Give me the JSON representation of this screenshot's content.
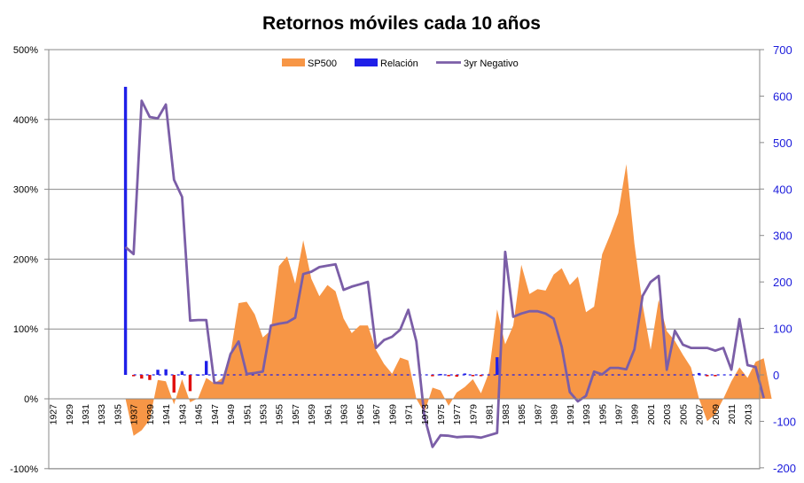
{
  "chart_data": {
    "type": "area",
    "title": "Retornos móviles cada 10 años",
    "colors": {
      "sp500": "#f79646",
      "relacion_pos": "#1f1fe8",
      "relacion_neg": "#e01010",
      "negativo": "#7b5ea7",
      "right_axis_text": "#1a1adb"
    },
    "left_axis": {
      "min": -1.0,
      "max": 5.0,
      "ticks": [
        "-100%",
        "0%",
        "100%",
        "200%",
        "300%",
        "400%",
        "500%"
      ]
    },
    "right_axis": {
      "min": -200,
      "max": 700,
      "ticks": [
        "-200",
        "-100",
        "0",
        "100",
        "200",
        "300",
        "400",
        "500",
        "600",
        "700"
      ]
    },
    "x_tick_labels": [
      "1927",
      "1929",
      "1931",
      "1933",
      "1935",
      "1937",
      "1939",
      "1941",
      "1943",
      "1945",
      "1947",
      "1949",
      "1951",
      "1953",
      "1955",
      "1957",
      "1959",
      "1961",
      "1963",
      "1965",
      "1967",
      "1969",
      "1971",
      "1973",
      "1975",
      "1977",
      "1979",
      "1981",
      "1983",
      "1985",
      "1987",
      "1989",
      "1991",
      "1993",
      "1995",
      "1997",
      "1999",
      "2001",
      "2003",
      "2005",
      "2007",
      "2009",
      "2011",
      "2013"
    ],
    "grid": true,
    "legend_position": "top-center",
    "series": [
      {
        "name": "SP500",
        "axis": "left",
        "type": "area",
        "start_year": 1936,
        "values": [
          0,
          -0.53,
          -0.45,
          -0.3,
          0.27,
          0.25,
          -0.08,
          0.28,
          -0.05,
          0.01,
          0.3,
          0.22,
          0.3,
          0.65,
          1.37,
          1.39,
          1.21,
          0.88,
          0.98,
          1.9,
          2.04,
          1.65,
          2.27,
          1.72,
          1.47,
          1.63,
          1.54,
          1.15,
          0.94,
          1.05,
          1.05,
          0.7,
          0.5,
          0.36,
          0.59,
          0.55,
          0.0,
          -0.2,
          0.16,
          0.12,
          -0.1,
          0.09,
          0.17,
          0.28,
          0.08,
          0.38,
          1.28,
          0.78,
          1.05,
          1.92,
          1.5,
          1.57,
          1.55,
          1.78,
          1.87,
          1.63,
          1.75,
          1.24,
          1.32,
          2.07,
          2.35,
          2.66,
          3.36,
          2.22,
          1.35,
          0.7,
          1.42,
          0.97,
          0.83,
          0.63,
          0.45,
          0.0,
          -0.32,
          -0.22,
          0.0,
          0.25,
          0.45,
          0.3,
          0.53,
          0.58,
          -0.01
        ]
      },
      {
        "name": "Relación",
        "axis": "right",
        "type": "bar",
        "start_year": 1936,
        "values": [
          620,
          -3,
          -8,
          -11,
          11,
          12,
          -38,
          8,
          -35,
          1,
          30,
          1,
          0,
          0,
          0,
          0,
          0,
          0,
          0,
          0,
          0,
          0,
          0,
          0,
          0,
          0,
          0,
          0,
          0,
          0,
          0,
          0,
          0,
          0,
          0,
          0,
          0,
          0,
          -3,
          2,
          -2,
          -4,
          3,
          -1,
          -2,
          0,
          38,
          0,
          0,
          0,
          0,
          0,
          0,
          0,
          0,
          0,
          0,
          0,
          0,
          0,
          0,
          0,
          0,
          0,
          0,
          0,
          0,
          0,
          0,
          0,
          0,
          4,
          -3,
          -3,
          0,
          0,
          0,
          0,
          0,
          0,
          0
        ]
      },
      {
        "name": "3yr Negativo",
        "axis": "right",
        "type": "line",
        "start_year": 1936,
        "values": [
          275,
          260,
          590,
          555,
          552,
          582,
          420,
          383,
          117,
          118,
          118,
          -17,
          -18,
          45,
          72,
          2,
          4,
          7,
          106,
          110,
          113,
          123,
          217,
          222,
          232,
          235,
          238,
          183,
          190,
          195,
          200,
          58,
          75,
          82,
          97,
          140,
          72,
          -90,
          -155,
          -130,
          -131,
          -134,
          -133,
          -133,
          -135,
          -130,
          -125,
          265,
          125,
          132,
          137,
          137,
          132,
          121,
          60,
          -37,
          -57,
          -45,
          7,
          1,
          15,
          15,
          12,
          55,
          170,
          200,
          213,
          11,
          95,
          65,
          58,
          58,
          58,
          52,
          58,
          11,
          120,
          21,
          17,
          -50
        ]
      }
    ]
  }
}
